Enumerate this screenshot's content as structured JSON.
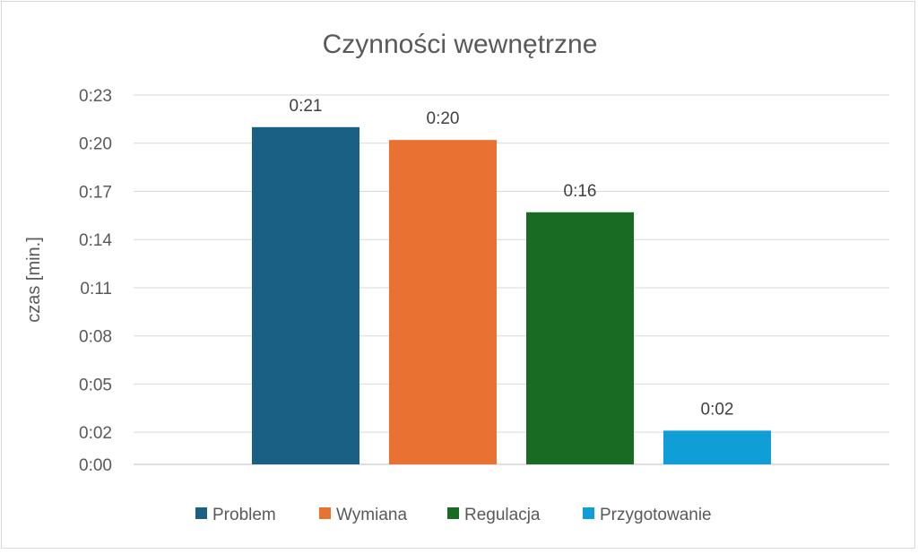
{
  "chart_data": {
    "type": "bar",
    "title": "Czynności wewnętrzne",
    "xlabel": "",
    "ylabel": "czas [min.]",
    "ylim": [
      0,
      23
    ],
    "yticks": [
      0,
      2,
      5,
      8,
      11,
      14,
      17,
      20,
      23
    ],
    "ytick_labels": [
      "0:00",
      "0:02",
      "0:05",
      "0:08",
      "0:11",
      "0:14",
      "0:17",
      "0:20",
      "0:23"
    ],
    "grid": true,
    "legend_position": "bottom",
    "series": [
      {
        "name": "Problem",
        "value": 21,
        "label": "0:21",
        "color": "#196084"
      },
      {
        "name": "Wymiana",
        "value": 20.2,
        "label": "0:20",
        "color": "#E97132"
      },
      {
        "name": "Regulacja",
        "value": 15.7,
        "label": "0:16",
        "color": "#196B24"
      },
      {
        "name": "Przygotowanie",
        "value": 2.1,
        "label": "0:02",
        "color": "#0F9ED5"
      }
    ]
  }
}
